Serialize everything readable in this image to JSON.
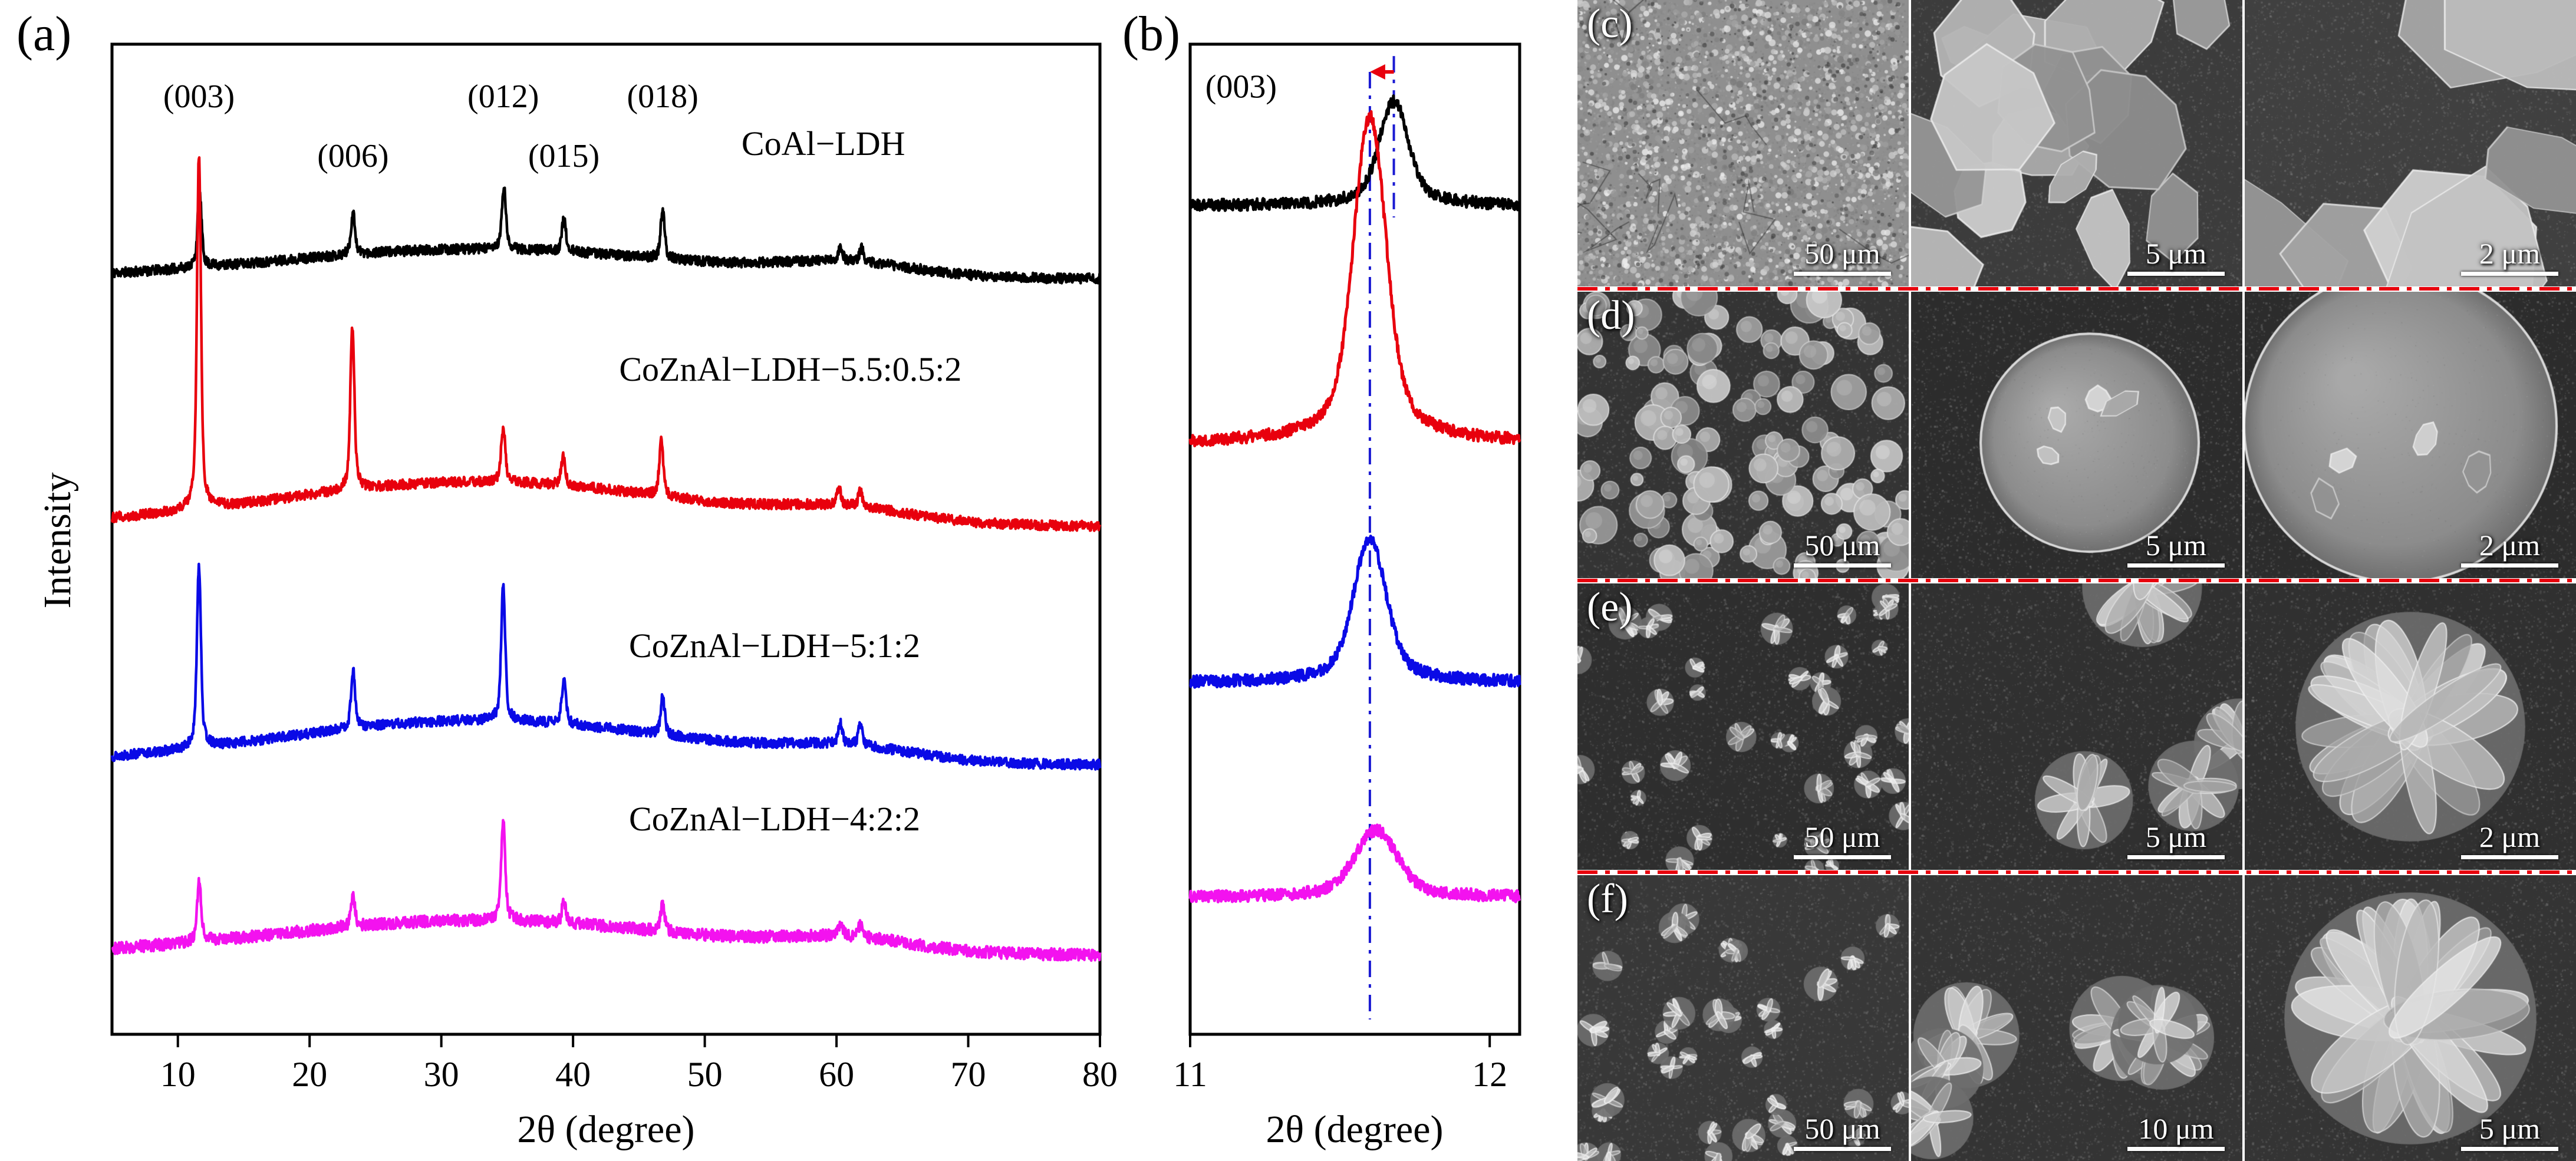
{
  "panels": {
    "a_label": "(a)",
    "b_label": "(b)"
  },
  "colors": {
    "axis": "#000000",
    "black_series": "#000000",
    "red_series": "#e8000d",
    "blue_series": "#0a0ae6",
    "magenta_series": "#f312ef",
    "guide_line": "#1a1ad2",
    "separator_line": "#e8000d"
  },
  "chart_data": [
    {
      "type": "line",
      "panel": "a",
      "xlabel": "2θ (degree)",
      "ylabel": "Intensity",
      "xlim": [
        5,
        80
      ],
      "x_ticks": [
        10,
        20,
        30,
        40,
        50,
        60,
        70,
        80
      ],
      "y_axis": "Intensity (a.u., curves vertically offset)",
      "samples": 2400,
      "stroke": 4.5,
      "peak_annotations": [
        {
          "label": "(003)",
          "two_theta": 11.6,
          "y": 0.04
        },
        {
          "label": "(006)",
          "two_theta": 23.3,
          "y": 0.1
        },
        {
          "label": "(012)",
          "two_theta": 34.7,
          "y": 0.04
        },
        {
          "label": "(015)",
          "two_theta": 39.3,
          "y": 0.1
        },
        {
          "label": "(018)",
          "two_theta": 46.8,
          "y": 0.04
        }
      ],
      "series": [
        {
          "name": "CoAl−LDH",
          "color": "#000000",
          "baseline": 0.237,
          "hump": 0.03,
          "noise": 0.005,
          "seed": 11,
          "label_pos": {
            "x": 59,
            "y": 0.1
          },
          "peaks": [
            {
              "x": 11.65,
              "h": 0.075
            },
            {
              "x": 23.3,
              "h": 0.042
            },
            {
              "x": 34.75,
              "h": 0.062
            },
            {
              "x": 39.3,
              "h": 0.032
            },
            {
              "x": 46.8,
              "h": 0.048
            },
            {
              "x": 60.3,
              "h": 0.014
            },
            {
              "x": 61.9,
              "h": 0.014
            }
          ]
        },
        {
          "name": "CoZnAl−LDH−5.5:0.5:2",
          "color": "#e8000d",
          "baseline": 0.487,
          "hump": 0.045,
          "noise": 0.005,
          "seed": 12,
          "label_pos": {
            "x": 56.5,
            "y": 0.328
          },
          "peaks": [
            {
              "x": 11.6,
              "h": 0.355
            },
            {
              "x": 23.25,
              "h": 0.165
            },
            {
              "x": 34.7,
              "h": 0.055
            },
            {
              "x": 39.25,
              "h": 0.028
            },
            {
              "x": 46.7,
              "h": 0.055
            },
            {
              "x": 60.2,
              "h": 0.016
            },
            {
              "x": 61.8,
              "h": 0.016
            }
          ]
        },
        {
          "name": "CoZnAl−LDH−5:1:2",
          "color": "#0a0ae6",
          "baseline": 0.728,
          "hump": 0.045,
          "noise": 0.005,
          "seed": 13,
          "label_pos": {
            "x": 55.3,
            "y": 0.607
          },
          "peaks": [
            {
              "x": 11.6,
              "h": 0.185
            },
            {
              "x": 23.3,
              "h": 0.058
            },
            {
              "x": 34.7,
              "h": 0.135
            },
            {
              "x": 39.3,
              "h": 0.045
            },
            {
              "x": 46.8,
              "h": 0.038
            },
            {
              "x": 60.3,
              "h": 0.02
            },
            {
              "x": 61.8,
              "h": 0.02
            }
          ]
        },
        {
          "name": "CoZnAl−LDH−4:2:2",
          "color": "#f312ef",
          "baseline": 0.92,
          "hump": 0.035,
          "noise": 0.006,
          "seed": 14,
          "label_pos": {
            "x": 55.3,
            "y": 0.782
          },
          "peaks": [
            {
              "x": 11.62,
              "h": 0.062
            },
            {
              "x": 23.3,
              "h": 0.03
            },
            {
              "x": 34.7,
              "h": 0.1
            },
            {
              "x": 39.3,
              "h": 0.02
            },
            {
              "x": 46.8,
              "h": 0.026
            },
            {
              "x": 60.3,
              "h": 0.012
            },
            {
              "x": 61.8,
              "h": 0.012
            }
          ]
        }
      ]
    },
    {
      "type": "line",
      "panel": "b",
      "xlabel": "2θ (degree)",
      "xlim": [
        11,
        12.1
      ],
      "x_ticks": [
        11,
        12
      ],
      "y_axis": "Intensity (a.u., curves vertically offset)",
      "samples": 650,
      "stroke": 5,
      "peak_annotations": [
        {
          "label": "(003)",
          "two_theta": 11.17,
          "y": 0.03
        }
      ],
      "guides": [
        {
          "x": 11.6,
          "y1": 0.028,
          "y2": 0.985,
          "color": "#1a1ad2"
        },
        {
          "x": 11.68,
          "y1": 0.012,
          "y2": 0.175,
          "color": "#1a1ad2"
        }
      ],
      "shift_arrow": {
        "from": 11.68,
        "to": 11.6,
        "y": 0.028,
        "color": "#e8000d"
      },
      "series": [
        {
          "name": "CoAl−LDH",
          "color": "#000000",
          "baseline": 0.163,
          "noise": 0.006,
          "seed": 21,
          "peaks": [
            {
              "x": 11.68,
              "h": 0.105,
              "w": 0.045
            }
          ]
        },
        {
          "name": "CoZnAl−LDH−5.5:0.5:2",
          "color": "#e8000d",
          "baseline": 0.403,
          "noise": 0.006,
          "seed": 22,
          "peaks": [
            {
              "x": 11.6,
              "h": 0.33,
              "w": 0.05
            }
          ]
        },
        {
          "name": "CoZnAl−LDH−5:1:2",
          "color": "#0a0ae6",
          "baseline": 0.645,
          "noise": 0.006,
          "seed": 23,
          "peaks": [
            {
              "x": 11.6,
              "h": 0.145,
              "w": 0.05
            }
          ]
        },
        {
          "name": "CoZnAl−LDH−4:2:2",
          "color": "#f312ef",
          "baseline": 0.862,
          "noise": 0.006,
          "seed": 24,
          "peaks": [
            {
              "x": 11.62,
              "h": 0.068,
              "w": 0.065
            }
          ]
        }
      ]
    }
  ],
  "sem": {
    "rows": [
      {
        "label": "(c)",
        "cells": [
          {
            "scale_bar": "50 μm",
            "pattern": "speckle",
            "bg": "#8f8f8f",
            "seed": 101
          },
          {
            "scale_bar": "5 μm",
            "pattern": "plates",
            "bg": "#3c3c3c",
            "count": 16,
            "rmin": 55,
            "rmax": 115,
            "seed": 102
          },
          {
            "scale_bar": "2 μm",
            "pattern": "plates",
            "bg": "#404040",
            "count": 7,
            "rmin": 110,
            "rmax": 200,
            "seed": 103
          }
        ]
      },
      {
        "label": "(d)",
        "cells": [
          {
            "scale_bar": "50 μm",
            "pattern": "discs",
            "bg": "#343434",
            "count": 130,
            "rmin": 10,
            "rmax": 32,
            "seed": 104
          },
          {
            "scale_bar": "5 μm",
            "pattern": "bigdisc",
            "bg": "#2c2c2c",
            "r": 185,
            "seed": 105
          },
          {
            "scale_bar": "2 μm",
            "pattern": "bigdisc",
            "bg": "#2c2c2c",
            "r": 265,
            "seed": 106
          }
        ]
      },
      {
        "label": "(e)",
        "cells": [
          {
            "scale_bar": "50 μm",
            "pattern": "flowers",
            "bg": "#2e2e2e",
            "count": 40,
            "rmin": 12,
            "rmax": 30,
            "seed": 107
          },
          {
            "scale_bar": "5 μm",
            "pattern": "flowers",
            "bg": "#303030",
            "count": 4,
            "rmin": 80,
            "rmax": 115,
            "seed": 108
          },
          {
            "scale_bar": "2 μm",
            "pattern": "flower",
            "bg": "#303030",
            "r": 205,
            "seed": 109
          }
        ]
      },
      {
        "label": "(f)",
        "cells": [
          {
            "scale_bar": "50 μm",
            "pattern": "flowers",
            "bg": "#383838",
            "count": 32,
            "rmin": 16,
            "rmax": 32,
            "seed": 110
          },
          {
            "scale_bar": "10 μm",
            "pattern": "flowers",
            "bg": "#343434",
            "count": 6,
            "rmin": 65,
            "rmax": 95,
            "seed": 111
          },
          {
            "scale_bar": "5 μm",
            "pattern": "flower",
            "bg": "#343434",
            "r": 225,
            "seed": 112
          }
        ]
      }
    ]
  }
}
